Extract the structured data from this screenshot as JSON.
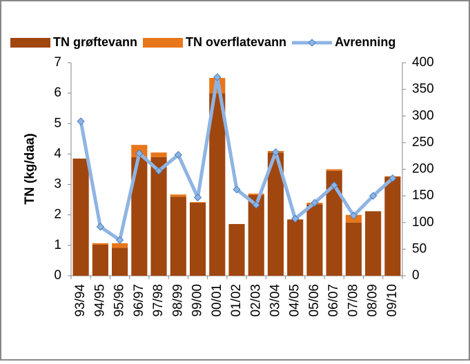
{
  "chart_data": {
    "type": "bar",
    "categories": [
      "93/94",
      "94/95",
      "95/96",
      "96/97",
      "97/98",
      "98/99",
      "99/00",
      "00/01",
      "01/02",
      "02/03",
      "03/04",
      "04/05",
      "05/06",
      "06/07",
      "07/08",
      "08/09",
      "09/10"
    ],
    "series": [
      {
        "name": "TN grøftevann",
        "color": "#a0460f",
        "values": [
          3.85,
          1.02,
          0.92,
          3.9,
          3.9,
          2.6,
          2.4,
          6.0,
          1.7,
          2.65,
          4.05,
          1.85,
          2.35,
          3.45,
          1.75,
          2.12,
          3.25
        ]
      },
      {
        "name": "TN overflatevann",
        "color": "#e8761a",
        "values": [
          0,
          0.05,
          0.15,
          0.4,
          0.15,
          0.07,
          0.02,
          0.5,
          0,
          0.05,
          0.05,
          0,
          0.05,
          0.05,
          0.25,
          0,
          0.02
        ]
      },
      {
        "name": "Avrenning",
        "color": "#8eb4e3",
        "axis": "y2",
        "values": [
          290,
          92,
          67,
          230,
          197,
          227,
          147,
          373,
          162,
          133,
          232,
          107,
          137,
          170,
          113,
          150,
          183
        ]
      }
    ],
    "ylabel": "TN (kg/daa)",
    "ylim": [
      0,
      7
    ],
    "yticks": [
      0,
      1,
      2,
      3,
      4,
      5,
      6,
      7
    ],
    "y2lim": [
      0,
      400
    ],
    "y2ticks": [
      0,
      50,
      100,
      150,
      200,
      250,
      300,
      350,
      400
    ],
    "stacked": true
  }
}
